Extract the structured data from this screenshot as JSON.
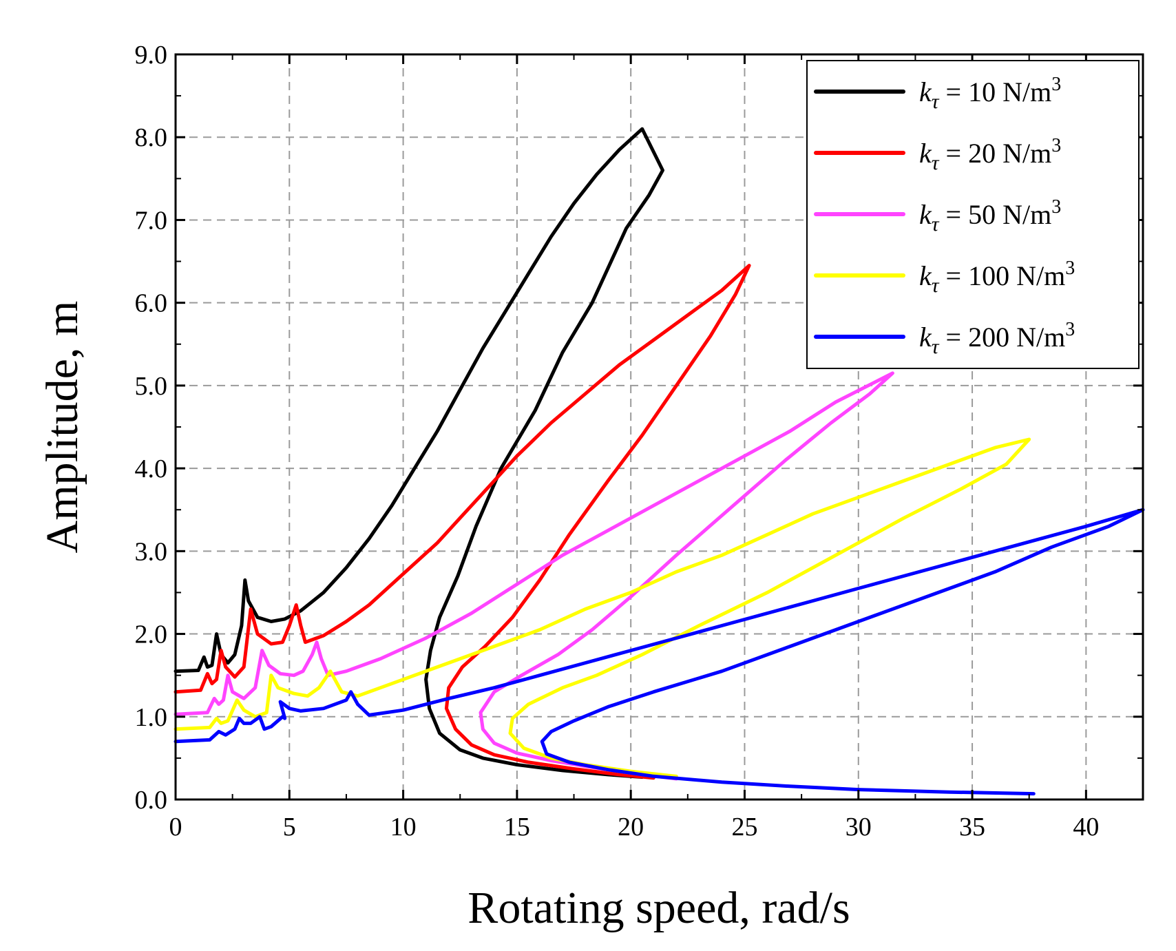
{
  "chart_data": {
    "type": "line",
    "title": "",
    "xlabel": "Rotating speed, rad/s",
    "ylabel": "Amplitude, m",
    "xlim": [
      0,
      42.5
    ],
    "ylim": [
      0,
      9.0
    ],
    "xticks": [
      0,
      5,
      10,
      15,
      20,
      25,
      30,
      35,
      40
    ],
    "yticks": [
      0.0,
      1.0,
      2.0,
      3.0,
      4.0,
      5.0,
      6.0,
      7.0,
      8.0,
      9.0
    ],
    "xtick_labels": [
      "0",
      "5",
      "10",
      "15",
      "20",
      "25",
      "30",
      "35",
      "40"
    ],
    "ytick_labels": [
      "0.0",
      "1.0",
      "2.0",
      "3.0",
      "4.0",
      "5.0",
      "6.0",
      "7.0",
      "8.0",
      "9.0"
    ],
    "grid": true,
    "legend_position": "top-right",
    "series": [
      {
        "name": "k_τ = 10 N/m³",
        "legend_symbol": "k",
        "legend_subscript": "τ",
        "legend_text": " = 10 N/m",
        "legend_sup": "3",
        "color": "#000000",
        "points": [
          [
            0,
            1.55
          ],
          [
            1.0,
            1.56
          ],
          [
            1.25,
            1.72
          ],
          [
            1.4,
            1.6
          ],
          [
            1.6,
            1.62
          ],
          [
            1.8,
            2.0
          ],
          [
            2.0,
            1.75
          ],
          [
            2.3,
            1.65
          ],
          [
            2.6,
            1.75
          ],
          [
            2.9,
            2.1
          ],
          [
            3.05,
            2.65
          ],
          [
            3.2,
            2.4
          ],
          [
            3.6,
            2.2
          ],
          [
            4.2,
            2.15
          ],
          [
            4.8,
            2.18
          ],
          [
            5.5,
            2.28
          ],
          [
            6.5,
            2.5
          ],
          [
            7.5,
            2.8
          ],
          [
            8.5,
            3.15
          ],
          [
            9.5,
            3.55
          ],
          [
            10.5,
            4.0
          ],
          [
            11.5,
            4.45
          ],
          [
            12.5,
            4.95
          ],
          [
            13.5,
            5.45
          ],
          [
            14.5,
            5.9
          ],
          [
            15.5,
            6.35
          ],
          [
            16.5,
            6.8
          ],
          [
            17.5,
            7.2
          ],
          [
            18.5,
            7.55
          ],
          [
            19.5,
            7.85
          ],
          [
            20.5,
            8.1
          ],
          [
            21.4,
            7.6
          ],
          [
            20.8,
            7.3
          ],
          [
            19.8,
            6.9
          ],
          [
            18.3,
            6.0
          ],
          [
            17.0,
            5.4
          ],
          [
            15.8,
            4.7
          ],
          [
            14.3,
            4.0
          ],
          [
            13.2,
            3.3
          ],
          [
            12.4,
            2.7
          ],
          [
            11.6,
            2.2
          ],
          [
            11.2,
            1.8
          ],
          [
            11.0,
            1.45
          ],
          [
            11.15,
            1.1
          ],
          [
            11.6,
            0.8
          ],
          [
            12.5,
            0.6
          ],
          [
            13.5,
            0.5
          ],
          [
            15,
            0.42
          ],
          [
            17,
            0.35
          ],
          [
            19,
            0.3
          ],
          [
            20.5,
            0.27
          ]
        ]
      },
      {
        "name": "k_τ = 20 N/m³",
        "legend_symbol": "k",
        "legend_subscript": "τ",
        "legend_text": " = 20 N/m",
        "legend_sup": "3",
        "color": "#ff0000",
        "points": [
          [
            0,
            1.3
          ],
          [
            1.1,
            1.32
          ],
          [
            1.4,
            1.52
          ],
          [
            1.6,
            1.4
          ],
          [
            1.8,
            1.45
          ],
          [
            2.0,
            1.8
          ],
          [
            2.2,
            1.6
          ],
          [
            2.6,
            1.48
          ],
          [
            3.0,
            1.6
          ],
          [
            3.3,
            2.3
          ],
          [
            3.6,
            2.0
          ],
          [
            4.2,
            1.88
          ],
          [
            4.7,
            1.9
          ],
          [
            5.0,
            2.1
          ],
          [
            5.3,
            2.35
          ],
          [
            5.5,
            2.1
          ],
          [
            5.7,
            1.9
          ],
          [
            6.5,
            1.98
          ],
          [
            7.5,
            2.15
          ],
          [
            8.5,
            2.35
          ],
          [
            9.5,
            2.6
          ],
          [
            10.5,
            2.85
          ],
          [
            11.5,
            3.1
          ],
          [
            12.5,
            3.4
          ],
          [
            13.5,
            3.7
          ],
          [
            15,
            4.15
          ],
          [
            16.5,
            4.55
          ],
          [
            18,
            4.9
          ],
          [
            19.5,
            5.25
          ],
          [
            21,
            5.55
          ],
          [
            22.5,
            5.85
          ],
          [
            24,
            6.15
          ],
          [
            25.2,
            6.45
          ],
          [
            24.6,
            6.1
          ],
          [
            23.5,
            5.6
          ],
          [
            22.0,
            5.0
          ],
          [
            20.5,
            4.4
          ],
          [
            19,
            3.85
          ],
          [
            17.3,
            3.2
          ],
          [
            16.0,
            2.65
          ],
          [
            14.8,
            2.2
          ],
          [
            13.6,
            1.85
          ],
          [
            12.6,
            1.6
          ],
          [
            12.0,
            1.35
          ],
          [
            11.9,
            1.1
          ],
          [
            12.3,
            0.85
          ],
          [
            13.0,
            0.66
          ],
          [
            14,
            0.54
          ],
          [
            15.5,
            0.45
          ],
          [
            17.5,
            0.37
          ],
          [
            19.5,
            0.3
          ],
          [
            21,
            0.26
          ]
        ]
      },
      {
        "name": "k_τ = 50 N/m³",
        "legend_symbol": "k",
        "legend_subscript": "τ",
        "legend_text": " = 50 N/m",
        "legend_sup": "3",
        "color": "#ff44ff",
        "points": [
          [
            0,
            1.03
          ],
          [
            1.4,
            1.05
          ],
          [
            1.7,
            1.22
          ],
          [
            1.9,
            1.15
          ],
          [
            2.1,
            1.2
          ],
          [
            2.3,
            1.5
          ],
          [
            2.5,
            1.3
          ],
          [
            3.0,
            1.22
          ],
          [
            3.5,
            1.35
          ],
          [
            3.8,
            1.8
          ],
          [
            4.1,
            1.62
          ],
          [
            4.6,
            1.52
          ],
          [
            5.2,
            1.5
          ],
          [
            5.6,
            1.55
          ],
          [
            6.0,
            1.75
          ],
          [
            6.2,
            1.9
          ],
          [
            6.4,
            1.7
          ],
          [
            6.7,
            1.5
          ],
          [
            7.5,
            1.55
          ],
          [
            9,
            1.7
          ],
          [
            11,
            1.95
          ],
          [
            13,
            2.25
          ],
          [
            15,
            2.6
          ],
          [
            17,
            2.95
          ],
          [
            19,
            3.25
          ],
          [
            21,
            3.55
          ],
          [
            23,
            3.85
          ],
          [
            25,
            4.15
          ],
          [
            27,
            4.45
          ],
          [
            29,
            4.8
          ],
          [
            31.5,
            5.15
          ],
          [
            30.5,
            4.9
          ],
          [
            28.8,
            4.55
          ],
          [
            26.8,
            4.1
          ],
          [
            24.5,
            3.55
          ],
          [
            22.0,
            2.95
          ],
          [
            20,
            2.45
          ],
          [
            18.3,
            2.05
          ],
          [
            16.8,
            1.75
          ],
          [
            15.2,
            1.5
          ],
          [
            14.0,
            1.3
          ],
          [
            13.4,
            1.05
          ],
          [
            13.5,
            0.85
          ],
          [
            14,
            0.68
          ],
          [
            15,
            0.56
          ],
          [
            16.5,
            0.47
          ],
          [
            18.5,
            0.38
          ],
          [
            20.5,
            0.3
          ],
          [
            22,
            0.25
          ]
        ]
      },
      {
        "name": "k_τ = 100 N/m³",
        "legend_symbol": "k",
        "legend_subscript": "τ",
        "legend_text": " = 100 N/m",
        "legend_sup": "3",
        "color": "#ffff00",
        "points": [
          [
            0,
            0.85
          ],
          [
            1.5,
            0.87
          ],
          [
            1.8,
            0.98
          ],
          [
            2.0,
            0.92
          ],
          [
            2.3,
            0.95
          ],
          [
            2.7,
            1.2
          ],
          [
            3.0,
            1.08
          ],
          [
            3.5,
            1.0
          ],
          [
            4.0,
            1.05
          ],
          [
            4.2,
            1.5
          ],
          [
            4.5,
            1.35
          ],
          [
            5.2,
            1.28
          ],
          [
            5.8,
            1.25
          ],
          [
            6.3,
            1.35
          ],
          [
            6.8,
            1.55
          ],
          [
            7.0,
            1.45
          ],
          [
            7.3,
            1.3
          ],
          [
            8,
            1.25
          ],
          [
            10,
            1.45
          ],
          [
            12,
            1.65
          ],
          [
            14,
            1.85
          ],
          [
            16,
            2.05
          ],
          [
            18,
            2.3
          ],
          [
            20,
            2.5
          ],
          [
            22,
            2.75
          ],
          [
            24,
            2.95
          ],
          [
            26,
            3.2
          ],
          [
            28,
            3.45
          ],
          [
            30,
            3.65
          ],
          [
            32,
            3.85
          ],
          [
            34,
            4.05
          ],
          [
            36,
            4.25
          ],
          [
            37.5,
            4.35
          ],
          [
            36.5,
            4.05
          ],
          [
            34.5,
            3.75
          ],
          [
            32,
            3.4
          ],
          [
            29,
            2.95
          ],
          [
            26,
            2.5
          ],
          [
            23,
            2.1
          ],
          [
            20.5,
            1.75
          ],
          [
            18.5,
            1.5
          ],
          [
            17,
            1.35
          ],
          [
            15.5,
            1.15
          ],
          [
            14.8,
            0.98
          ],
          [
            14.7,
            0.8
          ],
          [
            15.3,
            0.62
          ],
          [
            16.5,
            0.5
          ],
          [
            18,
            0.42
          ],
          [
            20,
            0.34
          ],
          [
            22,
            0.28
          ]
        ]
      },
      {
        "name": "k_τ = 200 N/m³",
        "legend_symbol": "k",
        "legend_subscript": "τ",
        "legend_text": " = 200 N/m",
        "legend_sup": "3",
        "color": "#0000ff",
        "points": [
          [
            0,
            0.7
          ],
          [
            1.5,
            0.72
          ],
          [
            1.9,
            0.82
          ],
          [
            2.2,
            0.78
          ],
          [
            2.6,
            0.85
          ],
          [
            2.8,
            0.98
          ],
          [
            3.0,
            0.92
          ],
          [
            3.3,
            0.92
          ],
          [
            3.7,
            1.0
          ],
          [
            3.9,
            0.85
          ],
          [
            4.2,
            0.88
          ],
          [
            4.7,
            1.0
          ],
          [
            4.8,
            0.98
          ],
          [
            4.6,
            1.18
          ],
          [
            5.0,
            1.1
          ],
          [
            5.5,
            1.07
          ],
          [
            6.5,
            1.1
          ],
          [
            7.5,
            1.2
          ],
          [
            7.7,
            1.3
          ],
          [
            8.0,
            1.15
          ],
          [
            8.5,
            1.02
          ],
          [
            10,
            1.08
          ],
          [
            12,
            1.22
          ],
          [
            14,
            1.35
          ],
          [
            16,
            1.5
          ],
          [
            18,
            1.65
          ],
          [
            20,
            1.8
          ],
          [
            22,
            1.95
          ],
          [
            24,
            2.1
          ],
          [
            26,
            2.25
          ],
          [
            28,
            2.4
          ],
          [
            30,
            2.55
          ],
          [
            32,
            2.7
          ],
          [
            34,
            2.85
          ],
          [
            36,
            3.0
          ],
          [
            38,
            3.15
          ],
          [
            40,
            3.3
          ],
          [
            42.5,
            3.5
          ],
          [
            41,
            3.3
          ],
          [
            38.5,
            3.05
          ],
          [
            36,
            2.75
          ],
          [
            33,
            2.45
          ],
          [
            30,
            2.15
          ],
          [
            27,
            1.85
          ],
          [
            24,
            1.55
          ],
          [
            21,
            1.3
          ],
          [
            19,
            1.12
          ],
          [
            17.5,
            0.95
          ],
          [
            16.5,
            0.82
          ],
          [
            16.1,
            0.7
          ],
          [
            16.3,
            0.55
          ],
          [
            17.3,
            0.45
          ],
          [
            19,
            0.36
          ],
          [
            21,
            0.28
          ],
          [
            24,
            0.21
          ],
          [
            27,
            0.16
          ],
          [
            30,
            0.12
          ],
          [
            34,
            0.09
          ],
          [
            37.7,
            0.07
          ]
        ]
      }
    ]
  }
}
